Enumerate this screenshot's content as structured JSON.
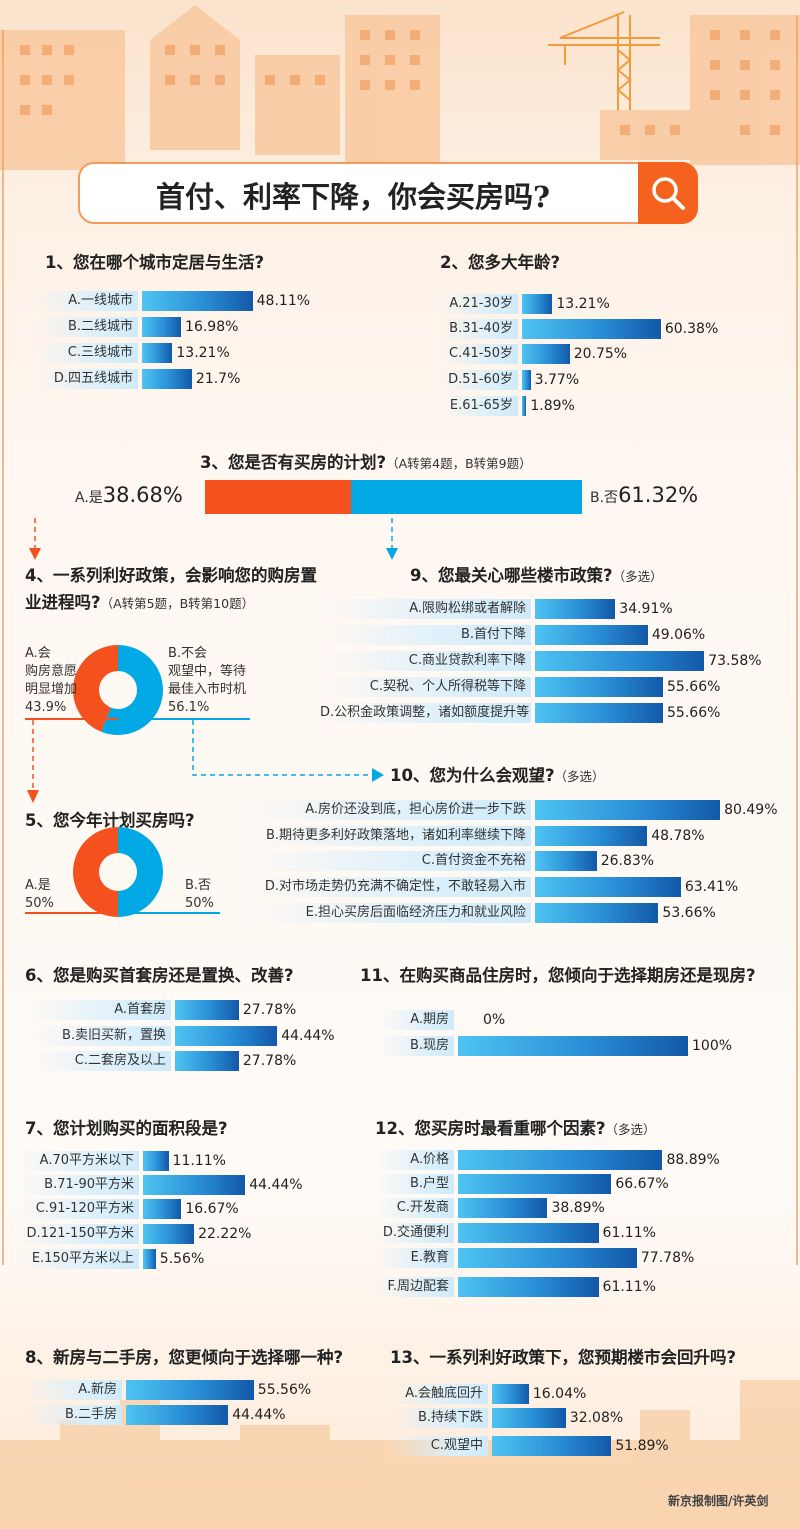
{
  "header": {
    "title": "首付、利率下降，你会买房吗?",
    "search_icon": "search-icon"
  },
  "colors": {
    "orange": "#f4511e",
    "blue": "#03a9e4",
    "bar_start": "#4ec4f2",
    "bar_end": "#1258a8"
  },
  "credit": "新京报制图/许英剑",
  "chart_data": [
    {
      "id": "q1",
      "type": "bar",
      "title": "1、您在哪个城市定居与生活?",
      "categories": [
        "A.一线城市",
        "B.二线城市",
        "C.三线城市",
        "D.四五线城市"
      ],
      "values": [
        48.11,
        16.98,
        13.21,
        21.7
      ]
    },
    {
      "id": "q2",
      "type": "bar",
      "title": "2、您多大年龄?",
      "categories": [
        "A.21-30岁",
        "B.31-40岁",
        "C.41-50岁",
        "D.51-60岁",
        "E.61-65岁"
      ],
      "values": [
        13.21,
        60.38,
        20.75,
        3.77,
        1.89
      ]
    },
    {
      "id": "q3",
      "type": "stacked-bar",
      "title": "3、您是否有买房的计划?",
      "note": "（A转第4题，B转第9题）",
      "categories": [
        "A.是",
        "B.否"
      ],
      "values": [
        38.68,
        61.32
      ]
    },
    {
      "id": "q4",
      "type": "pie",
      "title": "4、一系列利好政策，会影响您的购房置业进程吗?",
      "note": "（A转第5题，B转第10题）",
      "categories": [
        "A.会",
        "B.不会"
      ],
      "descriptions": [
        "购房意愿明显增加",
        "观望中，等待最佳入市时机"
      ],
      "values": [
        43.9,
        56.1
      ]
    },
    {
      "id": "q5",
      "type": "pie",
      "title": "5、您今年计划买房吗?",
      "categories": [
        "A.是",
        "B.否"
      ],
      "values": [
        50,
        50
      ]
    },
    {
      "id": "q6",
      "type": "bar",
      "title": "6、您是购买首套房还是置换、改善?",
      "categories": [
        "A.首套房",
        "B.卖旧买新，置换",
        "C.二套房及以上"
      ],
      "values": [
        27.78,
        44.44,
        27.78
      ]
    },
    {
      "id": "q7",
      "type": "bar",
      "title": "7、您计划购买的面积段是?",
      "categories": [
        "A.70平方米以下",
        "B.71-90平方米",
        "C.91-120平方米",
        "D.121-150平方米",
        "E.150平方米以上"
      ],
      "values": [
        11.11,
        44.44,
        16.67,
        22.22,
        5.56
      ]
    },
    {
      "id": "q8",
      "type": "bar",
      "title": "8、新房与二手房，您更倾向于选择哪一种?",
      "categories": [
        "A.新房",
        "B.二手房"
      ],
      "values": [
        55.56,
        44.44
      ]
    },
    {
      "id": "q9",
      "type": "bar",
      "title": "9、您最关心哪些楼市政策?",
      "note": "（多选）",
      "categories": [
        "A.限购松绑或者解除",
        "B.首付下降",
        "C.商业贷款利率下降",
        "C.契税、个人所得税等下降",
        "D.公积金政策调整，诸如额度提升等"
      ],
      "values": [
        34.91,
        49.06,
        73.58,
        55.66,
        55.66
      ]
    },
    {
      "id": "q10",
      "type": "bar",
      "title": "10、您为什么会观望?",
      "note": "（多选）",
      "categories": [
        "A.房价还没到底，担心房价进一步下跌",
        "B.期待更多利好政策落地，诸如利率继续下降",
        "C.首付资金不充裕",
        "D.对市场走势仍充满不确定性，不敢轻易入市",
        "E.担心买房后面临经济压力和就业风险"
      ],
      "values": [
        80.49,
        48.78,
        26.83,
        63.41,
        53.66
      ]
    },
    {
      "id": "q11",
      "type": "bar",
      "title": "11、在购买商品住房时，您倾向于选择期房还是现房?",
      "categories": [
        "A.期房",
        "B.现房"
      ],
      "values": [
        0,
        100
      ]
    },
    {
      "id": "q12",
      "type": "bar",
      "title": "12、您买房时最看重哪个因素?",
      "note": "（多选）",
      "categories": [
        "A.价格",
        "B.户型",
        "C.开发商",
        "D.交通便利",
        "E.教育",
        "F.周边配套"
      ],
      "values": [
        88.89,
        66.67,
        38.89,
        61.11,
        77.78,
        61.11
      ]
    },
    {
      "id": "q13",
      "type": "bar",
      "title": "13、一系列利好政策下，您预期楼市会回升吗?",
      "categories": [
        "A.会触底回升",
        "B.持续下跌",
        "C.观望中"
      ],
      "values": [
        16.04,
        32.08,
        51.89
      ]
    }
  ]
}
